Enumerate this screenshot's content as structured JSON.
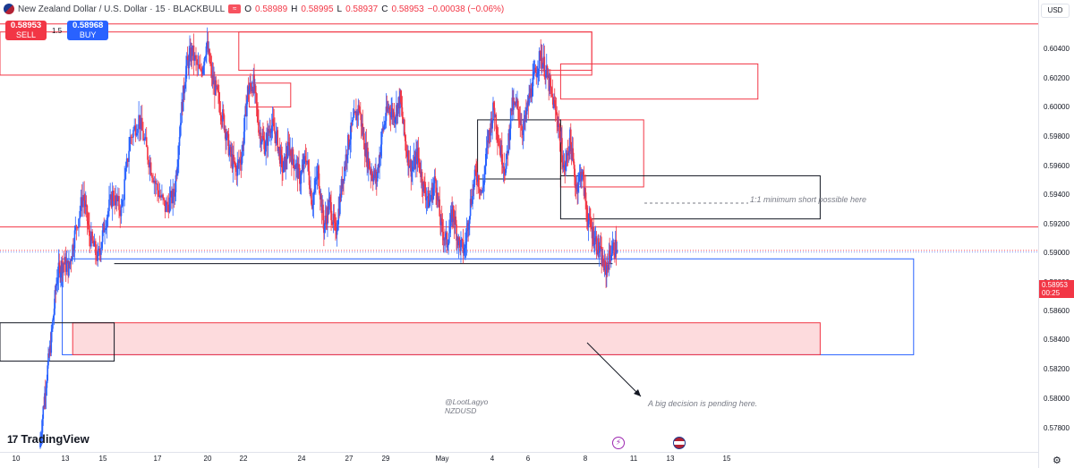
{
  "header": {
    "symbol_title": "New Zealand Dollar / U.S. Dollar · 15 · BLACKBULL",
    "open_label": "O",
    "open": "0.58989",
    "high_label": "H",
    "high": "0.58995",
    "low_label": "L",
    "low": "0.58937",
    "close_label": "C",
    "close": "0.58953",
    "change": "−0.00038 (−0.06%)",
    "flag_icon": "nz-us-flag-icon",
    "market_status_icon": "market-closed-icon"
  },
  "trade": {
    "sell_price": "0.58953",
    "sell_label": "SELL",
    "spread": "1.5",
    "buy_price": "0.58968",
    "buy_label": "BUY"
  },
  "price_axis": {
    "currency": "USD",
    "ticks": [
      "0.60400",
      "0.60200",
      "0.60000",
      "0.59800",
      "0.59600",
      "0.59400",
      "0.59200",
      "0.59000",
      "0.58800",
      "0.58600",
      "0.58400",
      "0.58200",
      "0.58000",
      "0.57800"
    ],
    "current_price": "0.58953",
    "countdown": "00:25"
  },
  "time_axis": {
    "ticks": [
      "10",
      "13",
      "15",
      "17",
      "20",
      "22",
      "24",
      "27",
      "29",
      "May",
      "4",
      "6",
      "8",
      "11",
      "13",
      "15"
    ],
    "settings_icon": "gear-icon"
  },
  "annotations": {
    "short_note": "1:1 minimum short possible here",
    "decision_note": "A big decision is pending here.",
    "author": "@LootLagyo",
    "pair": "NZDUSD"
  },
  "branding": {
    "logo_text": "TradingView"
  },
  "events": {
    "earnings_icon": "lightning-event-icon",
    "us_event_icon": "us-flag-event-icon"
  },
  "colors": {
    "bull": "#2962ff",
    "bear": "#f23645",
    "zone_red": "#f23645",
    "zone_black": "#131722",
    "zone_blue": "#2962ff"
  },
  "chart_data": {
    "type": "candlestick",
    "symbol": "NZDUSD",
    "interval": "15",
    "ylim": [
      0.5772,
      0.6052
    ],
    "path": [
      [
        0.0,
        0.5772
      ],
      [
        0.02,
        0.581
      ],
      [
        0.04,
        0.584
      ],
      [
        0.06,
        0.588
      ],
      [
        0.08,
        0.5888
      ],
      [
        0.1,
        0.5884
      ],
      [
        0.12,
        0.5905
      ],
      [
        0.15,
        0.593
      ],
      [
        0.17,
        0.5905
      ],
      [
        0.2,
        0.589
      ],
      [
        0.22,
        0.591
      ],
      [
        0.25,
        0.593
      ],
      [
        0.28,
        0.592
      ],
      [
        0.31,
        0.5965
      ],
      [
        0.34,
        0.5978
      ],
      [
        0.37,
        0.5955
      ],
      [
        0.4,
        0.5935
      ],
      [
        0.43,
        0.5922
      ],
      [
        0.46,
        0.593
      ],
      [
        0.48,
        0.5975
      ],
      [
        0.5,
        0.601
      ],
      [
        0.52,
        0.602
      ],
      [
        0.55,
        0.6005
      ],
      [
        0.57,
        0.6025
      ],
      [
        0.59,
        0.6002
      ],
      [
        0.61,
        0.599
      ],
      [
        0.63,
        0.5975
      ],
      [
        0.65,
        0.5955
      ],
      [
        0.67,
        0.5945
      ],
      [
        0.69,
        0.5955
      ],
      [
        0.71,
        0.5995
      ],
      [
        0.73,
        0.6
      ],
      [
        0.75,
        0.597
      ],
      [
        0.77,
        0.596
      ],
      [
        0.79,
        0.5975
      ],
      [
        0.81,
        0.5965
      ],
      [
        0.83,
        0.5945
      ],
      [
        0.85,
        0.596
      ],
      [
        0.87,
        0.595
      ],
      [
        0.89,
        0.594
      ],
      [
        0.91,
        0.5955
      ],
      [
        0.93,
        0.5925
      ],
      [
        0.95,
        0.5945
      ],
      [
        0.97,
        0.591
      ],
      [
        0.99,
        0.5925
      ],
      [
        1.01,
        0.5905
      ],
      [
        1.03,
        0.5935
      ],
      [
        1.05,
        0.596
      ],
      [
        1.07,
        0.5975
      ],
      [
        1.09,
        0.5985
      ],
      [
        1.11,
        0.596
      ],
      [
        1.13,
        0.5945
      ],
      [
        1.15,
        0.594
      ],
      [
        1.17,
        0.597
      ],
      [
        1.19,
        0.5985
      ],
      [
        1.21,
        0.598
      ],
      [
        1.23,
        0.599
      ],
      [
        1.25,
        0.596
      ],
      [
        1.27,
        0.5945
      ],
      [
        1.29,
        0.5955
      ],
      [
        1.31,
        0.5935
      ],
      [
        1.33,
        0.5925
      ],
      [
        1.35,
        0.594
      ],
      [
        1.37,
        0.591
      ],
      [
        1.39,
        0.59
      ],
      [
        1.41,
        0.592
      ],
      [
        1.43,
        0.59
      ],
      [
        1.45,
        0.5895
      ],
      [
        1.47,
        0.5925
      ],
      [
        1.49,
        0.5945
      ],
      [
        1.51,
        0.593
      ],
      [
        1.53,
        0.5965
      ],
      [
        1.55,
        0.5985
      ],
      [
        1.57,
        0.596
      ],
      [
        1.59,
        0.5945
      ],
      [
        1.61,
        0.5985
      ],
      [
        1.63,
        0.5985
      ],
      [
        1.65,
        0.597
      ],
      [
        1.67,
        0.599
      ],
      [
        1.69,
        0.6005
      ],
      [
        1.71,
        0.6018
      ],
      [
        1.73,
        0.6005
      ],
      [
        1.75,
        0.599
      ],
      [
        1.77,
        0.5975
      ],
      [
        1.79,
        0.5945
      ],
      [
        1.81,
        0.5965
      ],
      [
        1.83,
        0.5935
      ],
      [
        1.85,
        0.5945
      ],
      [
        1.87,
        0.5915
      ],
      [
        1.89,
        0.5905
      ],
      [
        1.91,
        0.5895
      ],
      [
        1.93,
        0.5882
      ],
      [
        1.95,
        0.5895
      ],
      [
        1.97,
        0.5898
      ]
    ],
    "zones": [
      {
        "color": "red",
        "fill": false,
        "price_top": 0.6037,
        "price_bottom": 0.6037,
        "from": 0.0,
        "to": 1.0
      },
      {
        "color": "red",
        "fill": false,
        "price_top": 0.6032,
        "price_bottom": 0.6005,
        "from": 0.0,
        "to": 0.57
      },
      {
        "color": "red",
        "fill": false,
        "price_top": 0.6032,
        "price_bottom": 0.6008,
        "from": 0.23,
        "to": 0.57
      },
      {
        "color": "red",
        "fill": false,
        "price_top": 0.6,
        "price_bottom": 0.5985,
        "from": 0.24,
        "to": 0.28
      },
      {
        "color": "red",
        "fill": false,
        "price_top": 0.6012,
        "price_bottom": 0.599,
        "from": 0.54,
        "to": 0.73
      },
      {
        "color": "red",
        "fill": false,
        "price_top": 0.5977,
        "price_bottom": 0.5935,
        "from": 0.54,
        "to": 0.62
      },
      {
        "color": "black",
        "fill": false,
        "price_top": 0.5977,
        "price_bottom": 0.594,
        "from": 0.46,
        "to": 0.54
      },
      {
        "color": "black",
        "fill": false,
        "price_top": 0.5942,
        "price_bottom": 0.5915,
        "from": 0.54,
        "to": 0.79
      },
      {
        "color": "red",
        "fill": false,
        "price_top": 0.591,
        "price_bottom": 0.591,
        "from": 0.0,
        "to": 1.0
      },
      {
        "color": "blue",
        "fill": false,
        "price_top": 0.589,
        "price_bottom": 0.583,
        "from": 0.06,
        "to": 0.88
      },
      {
        "color": "black",
        "fill": false,
        "price_top": 0.5887,
        "price_bottom": 0.5887,
        "from": 0.11,
        "to": 0.59
      },
      {
        "color": "red",
        "fill": true,
        "price_top": 0.585,
        "price_bottom": 0.583,
        "from": 0.07,
        "to": 0.79
      },
      {
        "color": "black",
        "fill": false,
        "price_top": 0.585,
        "price_bottom": 0.5826,
        "from": 0.0,
        "to": 0.11
      }
    ]
  }
}
